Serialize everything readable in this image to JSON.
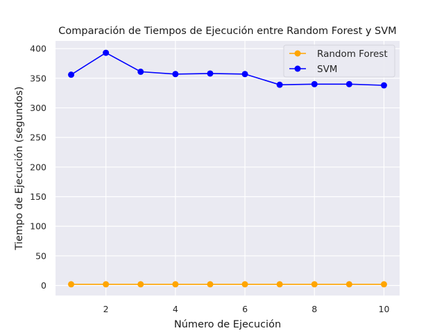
{
  "chart_data": {
    "type": "line",
    "title": "Comparación de Tiempos de Ejecución entre Random Forest y SVM",
    "xlabel": "Número de Ejecución",
    "ylabel": "Tiempo de Ejecución (segundos)",
    "x": [
      1,
      2,
      3,
      4,
      5,
      6,
      7,
      8,
      9,
      10
    ],
    "xlim": [
      0.55,
      10.45
    ],
    "ylim": [
      -17,
      413
    ],
    "xticks": [
      2,
      4,
      6,
      8,
      10
    ],
    "yticks": [
      0,
      50,
      100,
      150,
      200,
      250,
      300,
      350,
      400
    ],
    "grid": true,
    "legend_position": "top-right",
    "series": [
      {
        "name": "Random Forest",
        "color": "#FFA500",
        "marker": "circle",
        "values": [
          2,
          2,
          2,
          2,
          2,
          2,
          2,
          2,
          2,
          2
        ]
      },
      {
        "name": "SVM",
        "color": "#0000FF",
        "marker": "circle",
        "values": [
          356,
          393,
          361,
          357,
          358,
          357,
          339,
          340,
          340,
          338
        ]
      }
    ]
  },
  "theme": {
    "plot_background": "#EAEAF2",
    "grid_color": "#FFFFFF",
    "page_background": "#FFFFFF"
  }
}
